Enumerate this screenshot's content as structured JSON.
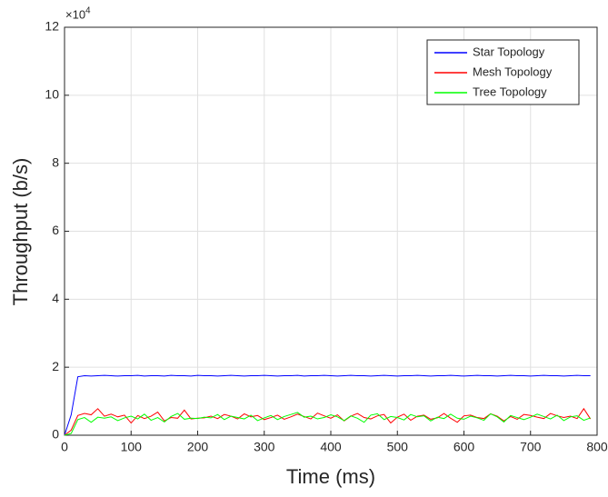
{
  "chart_data": {
    "type": "line",
    "x_label": "Time (ms)",
    "y_label": "Throughput (b/s)",
    "y_exponent_base": "×10",
    "y_exponent_power": "4",
    "x": [
      0,
      10,
      20,
      30,
      40,
      50,
      60,
      70,
      80,
      90,
      100,
      110,
      120,
      130,
      140,
      150,
      160,
      170,
      180,
      190,
      200,
      210,
      220,
      230,
      240,
      250,
      260,
      270,
      280,
      290,
      300,
      310,
      320,
      330,
      340,
      350,
      360,
      370,
      380,
      390,
      400,
      410,
      420,
      430,
      440,
      450,
      460,
      470,
      480,
      490,
      500,
      510,
      520,
      530,
      540,
      550,
      560,
      570,
      580,
      590,
      600,
      610,
      620,
      630,
      640,
      650,
      660,
      670,
      680,
      690,
      700,
      710,
      720,
      730,
      740,
      750,
      760,
      770,
      780,
      790
    ],
    "series": [
      {
        "name": "Star Topology",
        "color": "#0000ff",
        "values": [
          0,
          6000,
          17200,
          17500,
          17400,
          17500,
          17600,
          17500,
          17400,
          17500,
          17500,
          17600,
          17400,
          17500,
          17500,
          17400,
          17600,
          17500,
          17500,
          17400,
          17600,
          17500,
          17500,
          17400,
          17500,
          17600,
          17500,
          17400,
          17500,
          17500,
          17600,
          17500,
          17400,
          17500,
          17500,
          17600,
          17400,
          17500,
          17500,
          17600,
          17500,
          17400,
          17500,
          17600,
          17500,
          17500,
          17400,
          17500,
          17600,
          17500,
          17400,
          17500,
          17500,
          17600,
          17500,
          17400,
          17500,
          17500,
          17600,
          17500,
          17400,
          17500,
          17600,
          17500,
          17500,
          17400,
          17500,
          17600,
          17500,
          17500,
          17400,
          17500,
          17600,
          17500,
          17500,
          17400,
          17500,
          17600,
          17500,
          17500
        ]
      },
      {
        "name": "Mesh Topology",
        "color": "#ff0000",
        "values": [
          0,
          1500,
          5800,
          6400,
          6000,
          7800,
          5600,
          6200,
          5400,
          5900,
          3600,
          5800,
          4900,
          5600,
          6800,
          4200,
          5200,
          5000,
          7400,
          4800,
          5000,
          5100,
          5600,
          4900,
          6100,
          5600,
          4800,
          6300,
          5400,
          5800,
          4600,
          5200,
          5900,
          4700,
          5400,
          6200,
          5500,
          4800,
          6500,
          5700,
          5000,
          6000,
          4200,
          5600,
          6400,
          5200,
          4800,
          5700,
          6100,
          3600,
          5300,
          6200,
          4400,
          5600,
          5900,
          4700,
          5100,
          6400,
          5000,
          3800,
          5700,
          5900,
          5200,
          4900,
          6300,
          5600,
          4200,
          5500,
          4700,
          6100,
          5800,
          5300,
          4900,
          6400,
          5700,
          5200,
          5600,
          4900,
          7800,
          4800
        ]
      },
      {
        "name": "Tree Topology",
        "color": "#00ff00",
        "values": [
          0,
          500,
          4600,
          5200,
          3800,
          5300,
          5000,
          5400,
          4300,
          5100,
          5600,
          4800,
          6200,
          4400,
          5200,
          3900,
          5500,
          6400,
          4700,
          5000,
          4900,
          5300,
          5100,
          6100,
          4600,
          5600,
          5200,
          4800,
          5900,
          4300,
          5100,
          5800,
          4600,
          5500,
          6100,
          6700,
          5300,
          5600,
          4800,
          5200,
          6000,
          5400,
          4300,
          5700,
          5000,
          3800,
          5900,
          6300,
          4600,
          5500,
          5200,
          4500,
          6100,
          5400,
          5700,
          4200,
          5300,
          4900,
          6200,
          5000,
          4700,
          5600,
          5100,
          4400,
          6300,
          5400,
          3900,
          5800,
          5200,
          4600,
          5300,
          6200,
          5500,
          4800,
          5900,
          4300,
          5400,
          5700,
          4400,
          5100
        ]
      }
    ],
    "xlim": [
      0,
      800
    ],
    "xticks": [
      0,
      100,
      200,
      300,
      400,
      500,
      600,
      700,
      800
    ],
    "ylim": [
      0,
      120000
    ],
    "yticks": [
      {
        "value": 0,
        "label": "0"
      },
      {
        "value": 20000,
        "label": "2"
      },
      {
        "value": 40000,
        "label": "4"
      },
      {
        "value": 60000,
        "label": "6"
      },
      {
        "value": 80000,
        "label": "8"
      },
      {
        "value": 100000,
        "label": "10"
      },
      {
        "value": 120000,
        "label": "12"
      }
    ],
    "grid": true,
    "legend_location": "northeast"
  }
}
